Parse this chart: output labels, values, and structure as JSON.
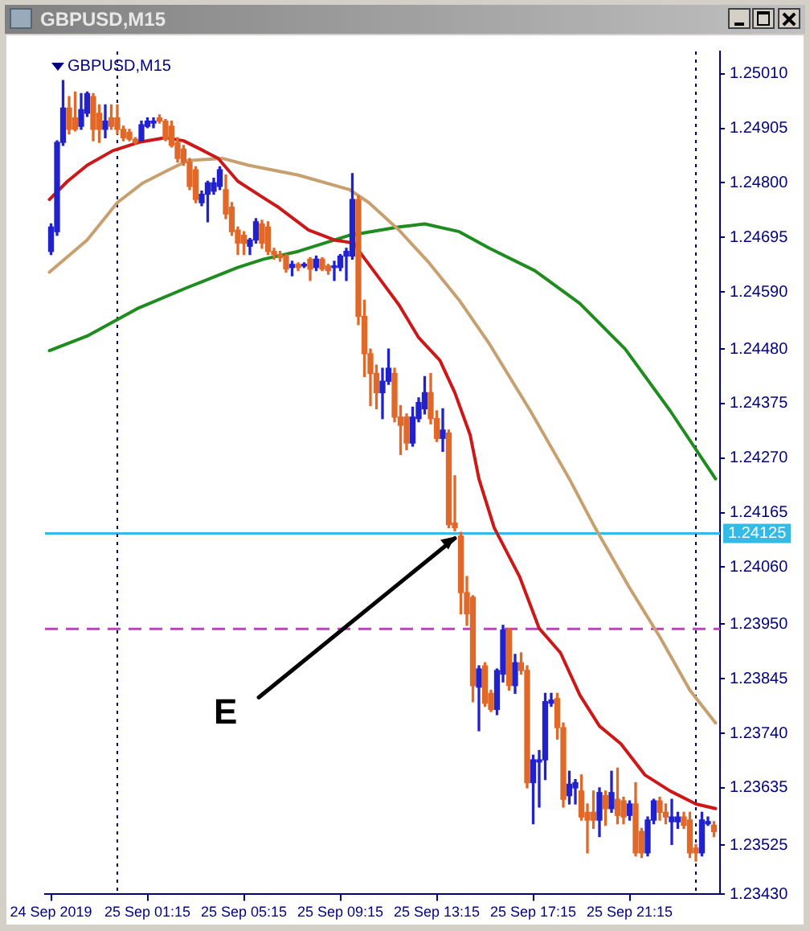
{
  "chart_data": {
    "type": "candlestick",
    "title": "GBPUSD,M15",
    "subtitle": "GBPUSD,M15",
    "x": [
      "2019-09-24T21:15",
      "2019-09-24T21:30",
      "2019-09-24T21:45",
      "2019-09-24T22:00",
      "2019-09-24T22:15",
      "2019-09-24T22:30",
      "2019-09-24T22:45",
      "2019-09-24T23:00",
      "2019-09-24T23:15",
      "2019-09-24T23:30",
      "2019-09-24T23:45",
      "2019-09-25T00:00",
      "2019-09-25T00:15",
      "2019-09-25T00:30",
      "2019-09-25T00:45",
      "2019-09-25T01:00",
      "2019-09-25T01:15",
      "2019-09-25T01:30",
      "2019-09-25T01:45",
      "2019-09-25T02:00",
      "2019-09-25T02:15",
      "2019-09-25T02:30",
      "2019-09-25T02:45",
      "2019-09-25T03:00",
      "2019-09-25T03:15",
      "2019-09-25T03:30",
      "2019-09-25T03:45",
      "2019-09-25T04:00",
      "2019-09-25T04:15",
      "2019-09-25T04:30",
      "2019-09-25T04:45",
      "2019-09-25T05:00",
      "2019-09-25T05:15",
      "2019-09-25T05:30",
      "2019-09-25T05:45",
      "2019-09-25T06:00",
      "2019-09-25T06:15",
      "2019-09-25T06:30",
      "2019-09-25T06:45",
      "2019-09-25T07:00",
      "2019-09-25T07:15",
      "2019-09-25T07:30",
      "2019-09-25T07:45",
      "2019-09-25T08:00",
      "2019-09-25T08:15",
      "2019-09-25T08:30",
      "2019-09-25T08:45",
      "2019-09-25T09:00",
      "2019-09-25T09:15",
      "2019-09-25T09:30",
      "2019-09-25T09:45",
      "2019-09-25T10:00",
      "2019-09-25T10:15",
      "2019-09-25T10:30",
      "2019-09-25T10:45",
      "2019-09-25T11:00",
      "2019-09-25T11:15",
      "2019-09-25T11:30",
      "2019-09-25T11:45",
      "2019-09-25T12:00",
      "2019-09-25T12:15",
      "2019-09-25T12:30",
      "2019-09-25T12:45",
      "2019-09-25T13:00",
      "2019-09-25T13:15",
      "2019-09-25T13:30",
      "2019-09-25T13:45",
      "2019-09-25T14:00",
      "2019-09-25T14:15",
      "2019-09-25T14:30",
      "2019-09-25T14:45",
      "2019-09-25T15:00",
      "2019-09-25T15:15",
      "2019-09-25T15:30",
      "2019-09-25T15:45",
      "2019-09-25T16:00",
      "2019-09-25T16:15",
      "2019-09-25T16:30",
      "2019-09-25T16:45",
      "2019-09-25T17:00",
      "2019-09-25T17:15",
      "2019-09-25T17:30",
      "2019-09-25T17:45",
      "2019-09-25T18:00",
      "2019-09-25T18:15",
      "2019-09-25T18:30",
      "2019-09-25T18:45",
      "2019-09-25T19:00",
      "2019-09-25T19:15",
      "2019-09-25T19:30",
      "2019-09-25T19:45",
      "2019-09-25T20:00",
      "2019-09-25T20:15",
      "2019-09-25T20:30",
      "2019-09-25T20:45",
      "2019-09-25T21:00",
      "2019-09-25T21:15",
      "2019-09-25T21:30",
      "2019-09-25T21:45",
      "2019-09-25T22:00",
      "2019-09-25T22:15",
      "2019-09-25T22:30",
      "2019-09-25T22:45",
      "2019-09-25T23:00",
      "2019-09-25T23:15",
      "2019-09-25T23:30",
      "2019-09-25T23:45",
      "2019-09-26T00:00",
      "2019-09-26T00:15",
      "2019-09-26T00:30",
      "2019-09-26T00:45"
    ],
    "ohlc": [
      [
        1.24668,
        1.24721,
        1.24662,
        1.24715
      ],
      [
        1.24706,
        1.24881,
        1.24699,
        1.24878
      ],
      [
        1.24878,
        1.24997,
        1.24872,
        1.24944
      ],
      [
        1.24944,
        1.24966,
        1.24894,
        1.24903
      ],
      [
        1.24925,
        1.24975,
        1.249,
        1.24903
      ],
      [
        1.24909,
        1.24972,
        1.24903,
        1.24941
      ],
      [
        1.24934,
        1.24975,
        1.24928,
        1.24972
      ],
      [
        1.24966,
        1.24972,
        1.24881,
        1.24903
      ],
      [
        1.24934,
        1.2495,
        1.24878,
        1.24903
      ],
      [
        1.24903,
        1.2495,
        1.24887,
        1.24919
      ],
      [
        1.24925,
        1.2495,
        1.24903,
        1.24909
      ],
      [
        1.24925,
        1.2495,
        1.24894,
        1.24903
      ],
      [
        1.24903,
        1.24909,
        1.24881,
        1.24887
      ],
      [
        1.24897,
        1.24903,
        1.24881,
        1.24884
      ],
      [
        1.24884,
        1.24887,
        1.24875,
        1.24878
      ],
      [
        1.24881,
        1.24919,
        1.24881,
        1.24912
      ],
      [
        1.24909,
        1.24925,
        1.24906,
        1.24919
      ],
      [
        1.24915,
        1.24925,
        1.24906,
        1.24919
      ],
      [
        1.24925,
        1.24931,
        1.24915,
        1.24919
      ],
      [
        1.24919,
        1.24922,
        1.24881,
        1.24884
      ],
      [
        1.24909,
        1.24919,
        1.24869,
        1.24872
      ],
      [
        1.24878,
        1.24887,
        1.2484,
        1.24847
      ],
      [
        1.24865,
        1.24872,
        1.24834,
        1.2484
      ],
      [
        1.2484,
        1.24847,
        1.24787,
        1.24793
      ],
      [
        1.24825,
        1.24831,
        1.24762,
        1.24768
      ],
      [
        1.24762,
        1.24784,
        1.24756,
        1.24778
      ],
      [
        1.24778,
        1.24803,
        1.24725,
        1.248
      ],
      [
        1.24784,
        1.24809,
        1.24778,
        1.248
      ],
      [
        1.24793,
        1.24831,
        1.24787,
        1.24825
      ],
      [
        1.24787,
        1.24815,
        1.24731,
        1.2474
      ],
      [
        1.24753,
        1.24762,
        1.24699,
        1.24706
      ],
      [
        1.24709,
        1.24715,
        1.24662,
        1.24684
      ],
      [
        1.24699,
        1.24706,
        1.24662,
        1.24684
      ],
      [
        1.24678,
        1.24693,
        1.24662,
        1.2469
      ],
      [
        1.2469,
        1.24731,
        1.24684,
        1.24725
      ],
      [
        1.24721,
        1.24728,
        1.24674,
        1.24684
      ],
      [
        1.24715,
        1.24725,
        1.24662,
        1.24668
      ],
      [
        1.24668,
        1.24674,
        1.24653,
        1.24662
      ],
      [
        1.24662,
        1.24668,
        1.24649,
        1.24656
      ],
      [
        1.24659,
        1.24662,
        1.24628,
        1.24634
      ],
      [
        1.24637,
        1.24649,
        1.24621,
        1.24643
      ],
      [
        1.24643,
        1.24646,
        1.24631,
        1.24637
      ],
      [
        1.2464,
        1.24646,
        1.24637,
        1.24643
      ],
      [
        1.24653,
        1.24656,
        1.24612,
        1.24634
      ],
      [
        1.24637,
        1.24659,
        1.24631,
        1.24653
      ],
      [
        1.24653,
        1.24656,
        1.24631,
        1.24634
      ],
      [
        1.2464,
        1.24643,
        1.24624,
        1.24631
      ],
      [
        1.24637,
        1.24649,
        1.24612,
        1.2464
      ],
      [
        1.24637,
        1.24662,
        1.24631,
        1.24659
      ],
      [
        1.24659,
        1.24674,
        1.24612,
        1.24668
      ],
      [
        1.24659,
        1.24818,
        1.24653,
        1.24768
      ],
      [
        1.24768,
        1.24775,
        1.24527,
        1.24543
      ],
      [
        1.24543,
        1.24574,
        1.24427,
        1.24471
      ],
      [
        1.24471,
        1.2448,
        1.24371,
        1.24433
      ],
      [
        1.24433,
        1.24449,
        1.24365,
        1.24396
      ],
      [
        1.24396,
        1.24443,
        1.24346,
        1.24418
      ],
      [
        1.24418,
        1.2448,
        1.24412,
        1.24443
      ],
      [
        1.24433,
        1.24443,
        1.2434,
        1.24349
      ],
      [
        1.24349,
        1.24371,
        1.24277,
        1.24333
      ],
      [
        1.24349,
        1.24355,
        1.24286,
        1.24299
      ],
      [
        1.24299,
        1.24368,
        1.24293,
        1.24349
      ],
      [
        1.24346,
        1.24386,
        1.2434,
        1.24377
      ],
      [
        1.24365,
        1.24427,
        1.24355,
        1.24396
      ],
      [
        1.24396,
        1.24433,
        1.24336,
        1.24346
      ],
      [
        1.24346,
        1.24361,
        1.24302,
        1.24308
      ],
      [
        1.24308,
        1.24365,
        1.24283,
        1.24324
      ],
      [
        1.24318,
        1.24324,
        1.24136,
        1.24142
      ],
      [
        1.24145,
        1.24236,
        1.2413,
        1.24136
      ],
      [
        1.2412,
        1.24127,
        1.2397,
        1.24011
      ],
      [
        1.24011,
        1.24042,
        1.23948,
        1.2397
      ],
      [
        1.24002,
        1.24005,
        1.23801,
        1.23832
      ],
      [
        1.23829,
        1.2387,
        1.23745,
        1.23864
      ],
      [
        1.2387,
        1.23876,
        1.23792,
        1.23798
      ],
      [
        1.23817,
        1.23823,
        1.23782,
        1.23786
      ],
      [
        1.23786,
        1.23864,
        1.23776,
        1.23861
      ],
      [
        1.23854,
        1.23948,
        1.23839,
        1.23939
      ],
      [
        1.23939,
        1.23942,
        1.23823,
        1.23832
      ],
      [
        1.23832,
        1.23892,
        1.23817,
        1.23876
      ],
      [
        1.23876,
        1.23895,
        1.23854,
        1.23861
      ],
      [
        1.23861,
        1.2387,
        1.23635,
        1.23645
      ],
      [
        1.23645,
        1.23698,
        1.23566,
        1.23689
      ],
      [
        1.23685,
        1.23707,
        1.23598,
        1.23689
      ],
      [
        1.23689,
        1.23817,
        1.23651,
        1.23801
      ],
      [
        1.23798,
        1.23817,
        1.23792,
        1.23804
      ],
      [
        1.23807,
        1.23817,
        1.23729,
        1.23751
      ],
      [
        1.23751,
        1.2376,
        1.23598,
        1.23613
      ],
      [
        1.2362,
        1.23667,
        1.23604,
        1.23642
      ],
      [
        1.23635,
        1.23651,
        1.23604,
        1.23645
      ],
      [
        1.23629,
        1.2366,
        1.23573,
        1.23579
      ],
      [
        1.23588,
        1.23604,
        1.2351,
        1.23573
      ],
      [
        1.23588,
        1.23629,
        1.23557,
        1.23573
      ],
      [
        1.23573,
        1.23635,
        1.23541,
        1.23626
      ],
      [
        1.2362,
        1.23629,
        1.23563,
        1.23595
      ],
      [
        1.23595,
        1.23667,
        1.23588,
        1.23626
      ],
      [
        1.23613,
        1.23673,
        1.23566,
        1.23582
      ],
      [
        1.2361,
        1.23617,
        1.23566,
        1.23579
      ],
      [
        1.23582,
        1.2361,
        1.23573,
        1.23604
      ],
      [
        1.23604,
        1.23645,
        1.23504,
        1.2351
      ],
      [
        1.23551,
        1.23557,
        1.23501,
        1.2351
      ],
      [
        1.2351,
        1.23579,
        1.23504,
        1.23573
      ],
      [
        1.23573,
        1.23613,
        1.23566,
        1.2361
      ],
      [
        1.2361,
        1.23617,
        1.23573,
        1.23588
      ],
      [
        1.23588,
        1.23604,
        1.23566,
        1.23579
      ],
      [
        1.2357,
        1.23613,
        1.23526,
        1.23579
      ],
      [
        1.2357,
        1.23588,
        1.23557,
        1.23579
      ],
      [
        1.23579,
        1.23588,
        1.23557,
        1.23563
      ],
      [
        1.23573,
        1.23588,
        1.23501,
        1.2351
      ],
      [
        1.23519,
        1.23526,
        1.23494,
        1.2351
      ],
      [
        1.2351,
        1.23588,
        1.23504,
        1.23573
      ],
      [
        1.23566,
        1.23579,
        1.23563,
        1.2357
      ],
      [
        1.23563,
        1.2357,
        1.23541,
        1.23551
      ]
    ],
    "colors": [
      "#2222cc",
      "#2222cc",
      "#2222cc",
      "#e0692a",
      "#e0692a",
      "#2222cc",
      "#2222cc",
      "#e0692a",
      "#e0692a",
      "#2222cc",
      "#e0692a",
      "#e0692a",
      "#e0692a",
      "#e0692a",
      "#e0692a",
      "#2222cc",
      "#2222cc",
      "#2222cc",
      "#e0692a",
      "#e0692a",
      "#e0692a",
      "#e0692a",
      "#e0692a",
      "#e0692a",
      "#e0692a",
      "#2222cc",
      "#2222cc",
      "#2222cc",
      "#2222cc",
      "#e0692a",
      "#e0692a",
      "#e0692a",
      "#e0692a",
      "#2222cc",
      "#2222cc",
      "#e0692a",
      "#e0692a",
      "#e0692a",
      "#e0692a",
      "#e0692a",
      "#2222cc",
      "#e0692a",
      "#2222cc",
      "#e0692a",
      "#2222cc",
      "#e0692a",
      "#e0692a",
      "#2222cc",
      "#2222cc",
      "#2222cc",
      "#2222cc",
      "#e0692a",
      "#e0692a",
      "#e0692a",
      "#e0692a",
      "#2222cc",
      "#2222cc",
      "#e0692a",
      "#e0692a",
      "#e0692a",
      "#2222cc",
      "#2222cc",
      "#2222cc",
      "#e0692a",
      "#e0692a",
      "#2222cc",
      "#e0692a",
      "#e0692a",
      "#e0692a",
      "#e0692a",
      "#e0692a",
      "#2222cc",
      "#e0692a",
      "#e0692a",
      "#2222cc",
      "#2222cc",
      "#e0692a",
      "#2222cc",
      "#e0692a",
      "#e0692a",
      "#2222cc",
      "#2222cc",
      "#2222cc",
      "#2222cc",
      "#e0692a",
      "#e0692a",
      "#2222cc",
      "#2222cc",
      "#e0692a",
      "#e0692a",
      "#e0692a",
      "#2222cc",
      "#e0692a",
      "#2222cc",
      "#e0692a",
      "#e0692a",
      "#2222cc",
      "#e0692a",
      "#e0692a",
      "#2222cc",
      "#2222cc",
      "#e0692a",
      "#e0692a",
      "#2222cc",
      "#2222cc",
      "#e0692a",
      "#e0692a",
      "#e0692a",
      "#2222cc",
      "#2222cc",
      "#e0692a"
    ],
    "series": [
      {
        "type": "line",
        "color": "#cc1818",
        "x": [
          "2019-09-24T21:11",
          "2019-09-24T21:56",
          "2019-09-24T22:45",
          "2019-09-24T23:49",
          "2019-09-25T00:53",
          "2019-09-25T02:00",
          "2019-09-25T02:45",
          "2019-09-25T03:34",
          "2019-09-25T04:11",
          "2019-09-25T05:00",
          "2019-09-25T06:04",
          "2019-09-25T06:41",
          "2019-09-25T07:56",
          "2019-09-25T09:00",
          "2019-09-25T09:49",
          "2019-09-25T10:08",
          "2019-09-25T10:53",
          "2019-09-25T11:41",
          "2019-09-25T12:30",
          "2019-09-25T13:23",
          "2019-09-25T14:00",
          "2019-09-25T14:38",
          "2019-09-25T15:00",
          "2019-09-25T15:38",
          "2019-09-25T16:41",
          "2019-09-25T17:30",
          "2019-09-25T18:23",
          "2019-09-25T19:11",
          "2019-09-25T20:00",
          "2019-09-25T20:53",
          "2019-09-25T21:53",
          "2019-09-25T22:56",
          "2019-09-26T00:00",
          "2019-09-26T00:49"
        ],
        "values": [
          1.24768,
          1.24803,
          1.24834,
          1.24862,
          1.24878,
          1.24887,
          1.24881,
          1.24862,
          1.24847,
          1.24803,
          1.24771,
          1.24753,
          1.24709,
          1.2469,
          1.24684,
          1.24662,
          1.24615,
          1.24565,
          1.24502,
          1.24458,
          1.24396,
          1.24315,
          1.2423,
          1.24136,
          1.24042,
          1.23942,
          1.23895,
          1.23814,
          1.23754,
          1.2372,
          1.2366,
          1.23629,
          1.23604,
          1.23595
        ]
      },
      {
        "type": "line",
        "color": "#c8a070",
        "x": [
          "2019-09-24T21:11",
          "2019-09-24T22:45",
          "2019-09-25T00:00",
          "2019-09-25T01:04",
          "2019-09-25T02:08",
          "2019-09-25T02:56",
          "2019-09-25T04:23",
          "2019-09-25T05:26",
          "2019-09-25T07:30",
          "2019-09-25T09:38",
          "2019-09-25T10:26",
          "2019-09-25T11:41",
          "2019-09-25T12:56",
          "2019-09-25T14:11",
          "2019-09-25T15:26",
          "2019-09-25T17:08",
          "2019-09-25T18:45",
          "2019-09-25T19:49",
          "2019-09-25T21:15",
          "2019-09-25T22:30",
          "2019-09-25T23:45",
          "2019-09-26T00:49"
        ],
        "values": [
          1.24628,
          1.2469,
          1.24762,
          1.248,
          1.24825,
          1.24843,
          1.24847,
          1.24834,
          1.24815,
          1.24787,
          1.24762,
          1.24709,
          1.24646,
          1.24574,
          1.2449,
          1.24361,
          1.2423,
          1.24136,
          1.2402,
          1.23926,
          1.23823,
          1.2376
        ]
      },
      {
        "type": "line",
        "color": "#1e8c1e",
        "x": [
          "2019-09-24T21:11",
          "2019-09-24T22:45",
          "2019-09-25T00:53",
          "2019-09-25T02:56",
          "2019-09-25T05:00",
          "2019-09-25T06:04",
          "2019-09-25T07:30",
          "2019-09-25T09:38",
          "2019-09-25T11:41",
          "2019-09-25T12:45",
          "2019-09-25T14:11",
          "2019-09-25T15:26",
          "2019-09-25T17:19",
          "2019-09-25T19:11",
          "2019-09-25T21:04",
          "2019-09-25T22:56",
          "2019-09-26T00:49"
        ],
        "values": [
          1.24477,
          1.24505,
          1.24559,
          1.24599,
          1.24637,
          1.24653,
          1.24668,
          1.24699,
          1.24715,
          1.24721,
          1.24706,
          1.24674,
          1.24631,
          1.24568,
          1.2448,
          1.24361,
          1.2423
        ]
      }
    ],
    "xlim": [
      "2019-09-24T21:00",
      "2019-09-26T01:00"
    ],
    "xticks": [
      {
        "value": "2019-09-24T21:15",
        "label": "24 Sep 2019"
      },
      {
        "value": "2019-09-25T01:15",
        "label": "25 Sep 01:15"
      },
      {
        "value": "2019-09-25T05:15",
        "label": "25 Sep 05:15"
      },
      {
        "value": "2019-09-25T09:15",
        "label": "25 Sep 09:15"
      },
      {
        "value": "2019-09-25T13:15",
        "label": "25 Sep 13:15"
      },
      {
        "value": "2019-09-25T17:15",
        "label": "25 Sep 17:15"
      },
      {
        "value": "2019-09-25T21:15",
        "label": "25 Sep 21:15"
      }
    ],
    "ylim": [
      1.2343,
      1.25053
    ],
    "yticks": [
      {
        "value": 1.2501,
        "label": "1.25010"
      },
      1.24905,
      {
        "value": 1.248,
        "label": "1.24800"
      },
      1.24695,
      {
        "value": 1.2459,
        "label": "1.24590"
      },
      {
        "value": 1.2448,
        "label": "1.24480"
      },
      1.24375,
      {
        "value": 1.2427,
        "label": "1.24270"
      },
      1.24165,
      {
        "value": 1.2406,
        "label": "1.24060"
      },
      {
        "value": 1.2395,
        "label": "1.23950"
      },
      1.23845,
      {
        "value": 1.2374,
        "label": "1.23740"
      },
      1.23635,
      1.23525,
      {
        "value": 1.2343,
        "label": "1.23430"
      }
    ],
    "ref_lines": [
      {
        "axis": "y",
        "value": 1.24125,
        "label": "1.24125",
        "color": "#33bbe8"
      },
      {
        "axis": "y",
        "value": 1.23941,
        "color": "#c040c0",
        "line_style": "dashed"
      },
      {
        "axis": "x",
        "value": "2019-09-25T00:00",
        "color": "#000060",
        "line_style": "dotted"
      },
      {
        "axis": "x",
        "value": "2019-09-26T00:00",
        "color": "#000060",
        "line_style": "dotted"
      }
    ],
    "annotations": [
      {
        "text": "E",
        "x": "2019-09-25T14:00",
        "y": 1.24125
      }
    ],
    "grid": false,
    "legend": false
  }
}
